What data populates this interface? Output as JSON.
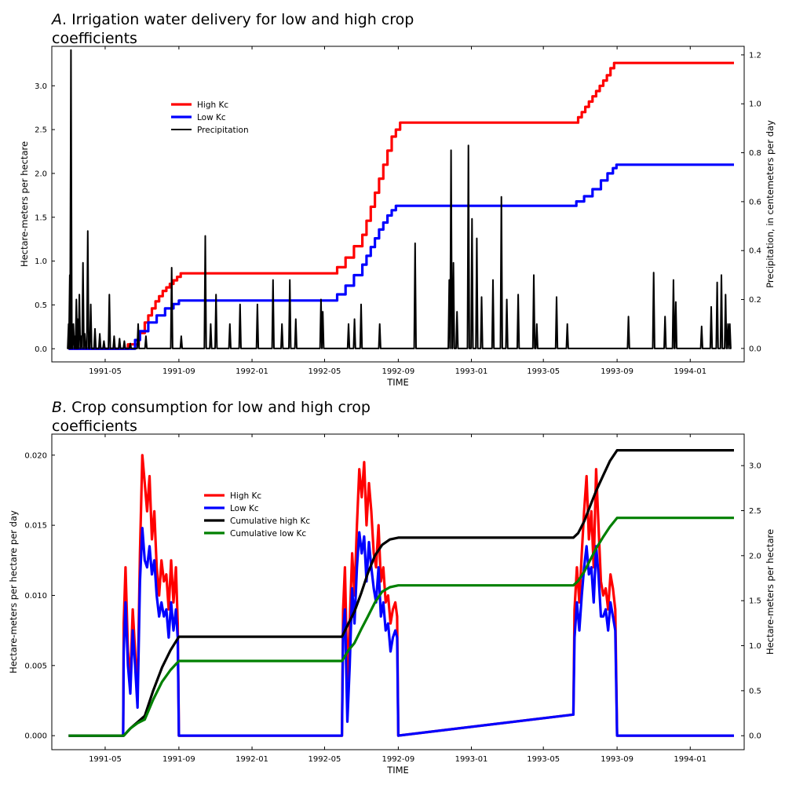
{
  "chart_data": [
    {
      "type": "line",
      "title_prefix": "A",
      "title_line1": ". Irrigation water delivery for low and high crop",
      "title_line2": "coefficients",
      "xlabel": "TIME",
      "ylabel": "Hectare-meters per hectare",
      "ylabel_right": "Precipitation, in centemeters per day",
      "x_ticks": [
        "1991-05",
        "1991-09",
        "1992-01",
        "1992-05",
        "1992-09",
        "1993-01",
        "1993-05",
        "1993-09",
        "1994-01"
      ],
      "x_range": [
        "1991-02-01",
        "1994-04-01"
      ],
      "ylim": [
        -0.15,
        3.45
      ],
      "y_ticks": [
        0.0,
        0.5,
        1.0,
        1.5,
        2.0,
        2.5,
        3.0
      ],
      "ylim_right": [
        -0.055,
        1.235
      ],
      "y_ticks_right": [
        0.0,
        0.2,
        0.4,
        0.6,
        0.8,
        1.0,
        1.2
      ],
      "legend_position": "upper-left",
      "grid": false,
      "series": [
        {
          "name": "High Kc",
          "axis": "left",
          "color": "#ff0000",
          "step": true,
          "x": [
            "1991-03-01",
            "1991-06-08",
            "1991-06-26",
            "1991-07-06",
            "1991-07-12",
            "1991-07-18",
            "1991-07-24",
            "1991-07-30",
            "1991-08-05",
            "1991-08-11",
            "1991-08-17",
            "1991-08-23",
            "1991-08-29",
            "1991-09-04",
            "1992-05-22",
            "1992-06-05",
            "1992-06-19",
            "1992-07-03",
            "1992-07-10",
            "1992-07-17",
            "1992-07-24",
            "1992-07-31",
            "1992-08-07",
            "1992-08-14",
            "1992-08-21",
            "1992-08-28",
            "1992-09-04",
            "1993-06-28",
            "1993-07-04",
            "1993-07-10",
            "1993-07-16",
            "1993-07-22",
            "1993-07-28",
            "1993-08-03",
            "1993-08-09",
            "1993-08-15",
            "1993-08-21",
            "1993-08-27",
            "1994-03-15"
          ],
          "y": [
            0.0,
            0.05,
            0.18,
            0.3,
            0.38,
            0.46,
            0.54,
            0.6,
            0.66,
            0.7,
            0.74,
            0.78,
            0.82,
            0.86,
            0.93,
            1.04,
            1.17,
            1.3,
            1.46,
            1.62,
            1.78,
            1.94,
            2.1,
            2.26,
            2.42,
            2.5,
            2.58,
            2.64,
            2.7,
            2.76,
            2.82,
            2.88,
            2.94,
            3.0,
            3.06,
            3.12,
            3.2,
            3.26,
            3.26
          ]
        },
        {
          "name": "Low Kc",
          "axis": "left",
          "color": "#0000ff",
          "step": true,
          "x": [
            "1991-03-01",
            "1991-06-20",
            "1991-06-28",
            "1991-07-12",
            "1991-07-26",
            "1991-08-09",
            "1991-08-23",
            "1991-09-01",
            "1992-05-22",
            "1992-06-05",
            "1992-06-19",
            "1992-07-03",
            "1992-07-10",
            "1992-07-17",
            "1992-07-24",
            "1992-07-31",
            "1992-08-07",
            "1992-08-14",
            "1992-08-21",
            "1992-08-28",
            "1993-06-25",
            "1993-07-08",
            "1993-07-22",
            "1993-08-05",
            "1993-08-16",
            "1993-08-25",
            "1993-08-31",
            "1994-03-15"
          ],
          "y": [
            0.0,
            0.1,
            0.2,
            0.3,
            0.38,
            0.46,
            0.51,
            0.55,
            0.62,
            0.72,
            0.84,
            0.96,
            1.06,
            1.16,
            1.26,
            1.36,
            1.44,
            1.52,
            1.58,
            1.63,
            1.68,
            1.74,
            1.82,
            1.92,
            2.0,
            2.06,
            2.1,
            2.1
          ]
        },
        {
          "name": "Precipitation",
          "axis": "right",
          "color": "#000000",
          "impulse": true,
          "x": [
            "1991-03-01",
            "1991-03-03",
            "1991-03-05",
            "1991-03-09",
            "1991-03-12",
            "1991-03-14",
            "1991-03-16",
            "1991-03-19",
            "1991-03-22",
            "1991-03-25",
            "1991-03-28",
            "1991-04-02",
            "1991-04-07",
            "1991-04-14",
            "1991-04-22",
            "1991-04-29",
            "1991-05-08",
            "1991-05-16",
            "1991-05-25",
            "1991-06-02",
            "1991-06-12",
            "1991-06-25",
            "1991-07-08",
            "1991-08-20",
            "1991-09-05",
            "1991-10-15",
            "1991-10-24",
            "1991-11-02",
            "1991-11-25",
            "1991-12-12",
            "1992-01-10",
            "1992-02-05",
            "1992-02-20",
            "1992-03-04",
            "1992-03-14",
            "1992-04-25",
            "1992-04-28",
            "1992-06-10",
            "1992-06-20",
            "1992-07-01",
            "1992-08-01",
            "1992-09-29",
            "1992-11-25",
            "1992-11-28",
            "1992-12-02",
            "1992-12-08",
            "1992-12-27",
            "1993-01-02",
            "1993-01-10",
            "1993-01-18",
            "1993-02-06",
            "1993-02-20",
            "1993-03-01",
            "1993-03-20",
            "1993-04-15",
            "1993-04-20",
            "1993-05-23",
            "1993-06-10",
            "1993-09-20",
            "1993-11-01",
            "1993-11-20",
            "1993-12-04",
            "1993-12-08",
            "1994-01-20",
            "1994-02-05",
            "1994-02-15",
            "1994-02-22",
            "1994-03-01",
            "1994-03-05",
            "1994-03-08"
          ],
          "y": [
            0.1,
            0.3,
            1.22,
            0.1,
            0.05,
            0.2,
            0.12,
            0.22,
            0.05,
            0.35,
            0.06,
            0.48,
            0.18,
            0.08,
            0.06,
            0.03,
            0.22,
            0.05,
            0.04,
            0.03,
            0.02,
            0.1,
            0.05,
            0.33,
            0.05,
            0.46,
            0.1,
            0.22,
            0.1,
            0.18,
            0.18,
            0.28,
            0.1,
            0.28,
            0.12,
            0.2,
            0.15,
            0.1,
            0.12,
            0.18,
            0.1,
            0.43,
            0.28,
            0.81,
            0.35,
            0.15,
            0.83,
            0.53,
            0.45,
            0.21,
            0.28,
            0.62,
            0.2,
            0.22,
            0.3,
            0.1,
            0.21,
            0.1,
            0.13,
            0.31,
            0.13,
            0.28,
            0.19,
            0.09,
            0.17,
            0.27,
            0.3,
            0.22,
            0.1,
            0.1
          ]
        }
      ]
    },
    {
      "type": "line",
      "title_prefix": "B",
      "title_line1": ". Crop consumption for low and high crop",
      "title_line2": "coefficients",
      "xlabel": "TIME",
      "ylabel": "Hectare-meters per hectare per day",
      "ylabel_right": "Hectare-meters per hectare",
      "x_ticks": [
        "1991-05",
        "1991-09",
        "1992-01",
        "1992-05",
        "1992-09",
        "1993-01",
        "1993-05",
        "1993-09",
        "1994-01"
      ],
      "x_range": [
        "1991-02-01",
        "1994-04-01"
      ],
      "ylim": [
        -0.001,
        0.0215
      ],
      "y_ticks": [
        0.0,
        0.005,
        0.01,
        0.015,
        0.02
      ],
      "ylim_right": [
        -0.155,
        3.35
      ],
      "y_ticks_right": [
        0.0,
        0.5,
        1.0,
        1.5,
        2.0,
        2.5,
        3.0
      ],
      "legend_position": "upper-left",
      "grid": false,
      "series": [
        {
          "name": "High Kc",
          "axis": "left",
          "color": "#ff0000",
          "x": [
            "1991-03-01",
            "1991-05-31",
            "1991-06-01",
            "1991-06-04",
            "1991-06-08",
            "1991-06-12",
            "1991-06-16",
            "1991-06-20",
            "1991-06-24",
            "1991-06-28",
            "1991-07-02",
            "1991-07-06",
            "1991-07-10",
            "1991-07-14",
            "1991-07-18",
            "1991-07-22",
            "1991-07-26",
            "1991-07-30",
            "1991-08-03",
            "1991-08-07",
            "1991-08-11",
            "1991-08-15",
            "1991-08-19",
            "1991-08-23",
            "1991-08-27",
            "1991-08-30",
            "1991-09-01",
            "1992-05-30",
            "1992-06-01",
            "1992-06-04",
            "1992-06-08",
            "1992-06-12",
            "1992-06-16",
            "1992-06-20",
            "1992-06-24",
            "1992-06-28",
            "1992-07-02",
            "1992-07-06",
            "1992-07-10",
            "1992-07-14",
            "1992-07-18",
            "1992-07-22",
            "1992-07-26",
            "1992-07-30",
            "1992-08-03",
            "1992-08-07",
            "1992-08-11",
            "1992-08-15",
            "1992-08-19",
            "1992-08-23",
            "1992-08-27",
            "1992-08-30",
            "1992-09-01",
            "1993-06-20",
            "1993-06-22",
            "1993-06-26",
            "1993-06-30",
            "1993-07-04",
            "1993-07-08",
            "1993-07-12",
            "1993-07-16",
            "1993-07-20",
            "1993-07-24",
            "1993-07-28",
            "1993-08-01",
            "1993-08-05",
            "1993-08-09",
            "1993-08-13",
            "1993-08-17",
            "1993-08-21",
            "1993-08-25",
            "1993-08-29",
            "1993-09-01",
            "1994-03-15"
          ],
          "y": [
            0,
            0,
            0.008,
            0.012,
            0.006,
            0.004,
            0.009,
            0.006,
            0.003,
            0.013,
            0.02,
            0.018,
            0.016,
            0.0185,
            0.014,
            0.016,
            0.012,
            0.01,
            0.0125,
            0.011,
            0.0115,
            0.009,
            0.0125,
            0.0095,
            0.012,
            0.008,
            0,
            0,
            0.009,
            0.012,
            0.004,
            0.008,
            0.013,
            0.01,
            0.015,
            0.019,
            0.017,
            0.0195,
            0.015,
            0.018,
            0.016,
            0.013,
            0.012,
            0.015,
            0.011,
            0.012,
            0.0095,
            0.01,
            0.008,
            0.009,
            0.0095,
            0.0085,
            0,
            0.0015,
            0.009,
            0.012,
            0.0095,
            0.013,
            0.016,
            0.0185,
            0.014,
            0.016,
            0.012,
            0.019,
            0.015,
            0.011,
            0.01,
            0.0105,
            0.009,
            0.0115,
            0.0105,
            0.009,
            0,
            0
          ]
        },
        {
          "name": "Low Kc",
          "axis": "left",
          "color": "#0000ff",
          "x": [
            "1991-03-01",
            "1991-05-31",
            "1991-06-01",
            "1991-06-04",
            "1991-06-08",
            "1991-06-12",
            "1991-06-16",
            "1991-06-20",
            "1991-06-24",
            "1991-06-28",
            "1991-07-02",
            "1991-07-06",
            "1991-07-10",
            "1991-07-14",
            "1991-07-18",
            "1991-07-22",
            "1991-07-26",
            "1991-07-30",
            "1991-08-03",
            "1991-08-07",
            "1991-08-11",
            "1991-08-15",
            "1991-08-19",
            "1991-08-23",
            "1991-08-27",
            "1991-08-30",
            "1991-09-01",
            "1992-05-30",
            "1992-06-01",
            "1992-06-04",
            "1992-06-08",
            "1992-06-12",
            "1992-06-16",
            "1992-06-20",
            "1992-06-24",
            "1992-06-28",
            "1992-07-02",
            "1992-07-06",
            "1992-07-10",
            "1992-07-14",
            "1992-07-18",
            "1992-07-22",
            "1992-07-26",
            "1992-07-30",
            "1992-08-03",
            "1992-08-07",
            "1992-08-11",
            "1992-08-15",
            "1992-08-19",
            "1992-08-23",
            "1992-08-27",
            "1992-08-30",
            "1992-09-01",
            "1993-06-20",
            "1993-06-22",
            "1993-06-26",
            "1993-06-30",
            "1993-07-04",
            "1993-07-08",
            "1993-07-12",
            "1993-07-16",
            "1993-07-20",
            "1993-07-24",
            "1993-07-28",
            "1993-08-01",
            "1993-08-05",
            "1993-08-09",
            "1993-08-13",
            "1993-08-17",
            "1993-08-21",
            "1993-08-25",
            "1993-08-29",
            "1993-09-01",
            "1994-03-15"
          ],
          "y": [
            0,
            0,
            0.006,
            0.0095,
            0.005,
            0.003,
            0.0075,
            0.005,
            0.002,
            0.011,
            0.0148,
            0.0125,
            0.012,
            0.0135,
            0.0115,
            0.0125,
            0.01,
            0.0085,
            0.0095,
            0.0085,
            0.009,
            0.007,
            0.0095,
            0.0075,
            0.009,
            0.007,
            0,
            0,
            0.0075,
            0.009,
            0.001,
            0.005,
            0.0105,
            0.008,
            0.012,
            0.0145,
            0.013,
            0.0142,
            0.011,
            0.0138,
            0.012,
            0.0105,
            0.0095,
            0.012,
            0.0085,
            0.0095,
            0.0075,
            0.008,
            0.006,
            0.007,
            0.0075,
            0.007,
            0,
            0.0015,
            0.007,
            0.0095,
            0.0075,
            0.01,
            0.012,
            0.0135,
            0.0115,
            0.012,
            0.0095,
            0.0135,
            0.0115,
            0.0085,
            0.0085,
            0.009,
            0.0075,
            0.0095,
            0.0085,
            0.0075,
            0,
            0
          ]
        },
        {
          "name": "Cumulative high Kc",
          "axis": "right",
          "color": "#000000",
          "x": [
            "1991-03-01",
            "1991-06-01",
            "1991-06-12",
            "1991-06-24",
            "1991-07-06",
            "1991-07-20",
            "1991-08-04",
            "1991-08-18",
            "1991-09-01",
            "1992-05-30",
            "1992-06-10",
            "1992-06-20",
            "1992-07-01",
            "1992-07-12",
            "1992-07-24",
            "1992-08-05",
            "1992-08-18",
            "1992-09-01",
            "1993-06-20",
            "1993-06-28",
            "1993-07-08",
            "1993-07-18",
            "1993-07-28",
            "1993-08-08",
            "1993-08-20",
            "1993-09-01",
            "1994-03-15"
          ],
          "y": [
            0,
            0,
            0.08,
            0.15,
            0.22,
            0.5,
            0.76,
            0.95,
            1.1,
            1.1,
            1.25,
            1.38,
            1.58,
            1.8,
            2.0,
            2.12,
            2.18,
            2.2,
            2.2,
            2.25,
            2.38,
            2.55,
            2.72,
            2.88,
            3.05,
            3.17,
            3.17
          ]
        },
        {
          "name": "Cumulative low Kc",
          "axis": "right",
          "color": "#008000",
          "x": [
            "1991-03-01",
            "1991-06-01",
            "1991-06-12",
            "1991-06-24",
            "1991-07-06",
            "1991-07-20",
            "1991-08-04",
            "1991-08-18",
            "1991-09-01",
            "1992-05-30",
            "1992-06-10",
            "1992-06-20",
            "1992-07-01",
            "1992-07-12",
            "1992-07-24",
            "1992-08-05",
            "1992-08-18",
            "1992-09-01",
            "1993-06-20",
            "1993-06-28",
            "1993-07-08",
            "1993-07-18",
            "1993-07-28",
            "1993-08-08",
            "1993-08-20",
            "1993-09-01",
            "1994-03-15"
          ],
          "y": [
            0,
            0,
            0.08,
            0.14,
            0.18,
            0.4,
            0.6,
            0.73,
            0.83,
            0.83,
            0.95,
            1.03,
            1.18,
            1.32,
            1.48,
            1.6,
            1.65,
            1.67,
            1.67,
            1.72,
            1.82,
            1.95,
            2.08,
            2.2,
            2.32,
            2.42,
            2.42
          ]
        }
      ]
    }
  ]
}
